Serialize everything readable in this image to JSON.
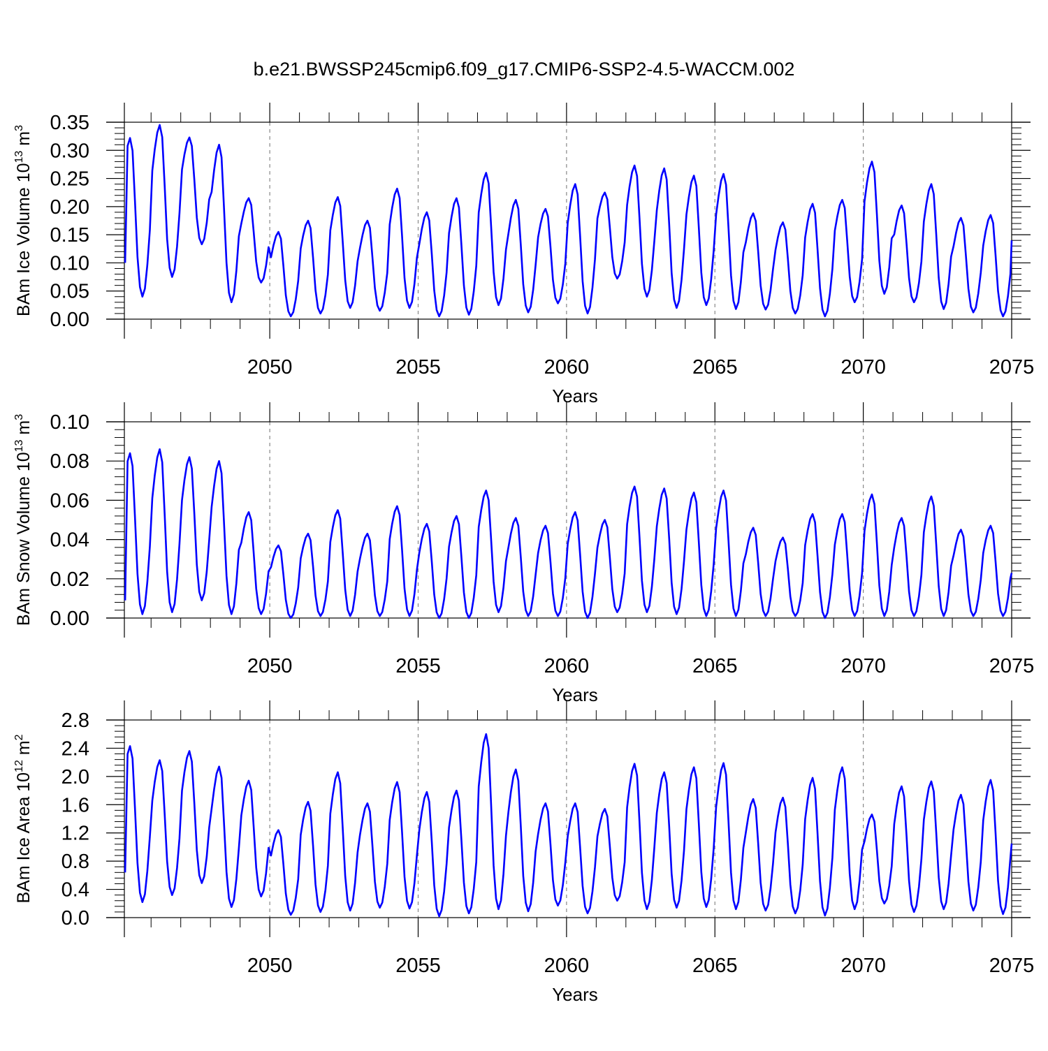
{
  "title": "b.e21.BWSSP245cmip6.f09_g17.CMIP6-SSP2-4.5-WACCM.002",
  "colors": {
    "line": "#0000ff",
    "axis": "#000000",
    "refline": "#888888"
  },
  "chart_data": [
    {
      "type": "line",
      "name": "ice-volume",
      "ylabel_main": "BAm Ice Volume 10",
      "ylabel_exp": "13",
      "ylabel_unit": " m",
      "ylabel_unit_exp": "3",
      "xlabel": "Years",
      "xlim": [
        2045.1,
        2075.0
      ],
      "ylim": [
        0.0,
        0.35
      ],
      "xticks": [
        2050,
        2055,
        2060,
        2065,
        2070,
        2075
      ],
      "xtick_labels": [
        "2050",
        "2055",
        "2060",
        "2065",
        "2070",
        "2075"
      ],
      "yticks": [
        0.0,
        0.05,
        0.1,
        0.15,
        0.2,
        0.25,
        0.3,
        0.35
      ],
      "ytick_labels": [
        "0.00",
        "0.05",
        "0.10",
        "0.15",
        "0.20",
        "0.25",
        "0.30",
        "0.35"
      ],
      "ref_lines_x": [
        2050,
        2055,
        2060,
        2065,
        2070
      ],
      "start_year": 2045.125,
      "step": 0.0833333,
      "annual": [
        [
          0.04,
          0.322
        ],
        [
          0.075,
          0.345
        ],
        [
          0.133,
          0.323
        ],
        [
          0.03,
          0.31
        ],
        [
          0.065,
          0.215
        ],
        [
          0.005,
          0.155
        ],
        [
          0.01,
          0.175
        ],
        [
          0.02,
          0.217
        ],
        [
          0.015,
          0.175
        ],
        [
          0.02,
          0.232
        ],
        [
          0.005,
          0.19
        ],
        [
          0.008,
          0.215
        ],
        [
          0.025,
          0.26
        ],
        [
          0.012,
          0.212
        ],
        [
          0.028,
          0.196
        ],
        [
          0.01,
          0.24
        ],
        [
          0.072,
          0.225
        ],
        [
          0.04,
          0.273
        ],
        [
          0.02,
          0.268
        ],
        [
          0.025,
          0.255
        ],
        [
          0.018,
          0.258
        ],
        [
          0.017,
          0.188
        ],
        [
          0.01,
          0.172
        ],
        [
          0.005,
          0.205
        ],
        [
          0.03,
          0.212
        ],
        [
          0.045,
          0.28
        ],
        [
          0.03,
          0.202
        ],
        [
          0.018,
          0.24
        ],
        [
          0.012,
          0.18
        ],
        [
          0.005,
          0.185
        ]
      ],
      "first_value": 0.1,
      "last_value": 0.14
    },
    {
      "type": "line",
      "name": "snow-volume",
      "ylabel_main": "BAm Snow Volume 10",
      "ylabel_exp": "13",
      "ylabel_unit": " m",
      "ylabel_unit_exp": "3",
      "xlabel": "Years",
      "xlim": [
        2045.1,
        2075.0
      ],
      "ylim": [
        0.0,
        0.1
      ],
      "xticks": [
        2050,
        2055,
        2060,
        2065,
        2070,
        2075
      ],
      "xtick_labels": [
        "2050",
        "2055",
        "2060",
        "2065",
        "2070",
        "2075"
      ],
      "yticks": [
        0.0,
        0.02,
        0.04,
        0.06,
        0.08,
        0.1
      ],
      "ytick_labels": [
        "0.00",
        "0.02",
        "0.04",
        "0.06",
        "0.08",
        "0.10"
      ],
      "ref_lines_x": [
        2050,
        2055,
        2060,
        2065,
        2070
      ],
      "start_year": 2045.125,
      "step": 0.0833333,
      "annual": [
        [
          0.002,
          0.084
        ],
        [
          0.003,
          0.086
        ],
        [
          0.009,
          0.082
        ],
        [
          0.002,
          0.08
        ],
        [
          0.002,
          0.054
        ],
        [
          0.0,
          0.037
        ],
        [
          0.001,
          0.043
        ],
        [
          0.001,
          0.055
        ],
        [
          0.001,
          0.043
        ],
        [
          0.001,
          0.057
        ],
        [
          0.0,
          0.048
        ],
        [
          0.0,
          0.052
        ],
        [
          0.003,
          0.065
        ],
        [
          0.001,
          0.051
        ],
        [
          0.001,
          0.047
        ],
        [
          0.0,
          0.054
        ],
        [
          0.003,
          0.05
        ],
        [
          0.003,
          0.067
        ],
        [
          0.002,
          0.066
        ],
        [
          0.001,
          0.064
        ],
        [
          0.001,
          0.065
        ],
        [
          0.001,
          0.046
        ],
        [
          0.001,
          0.041
        ],
        [
          0.0,
          0.053
        ],
        [
          0.001,
          0.053
        ],
        [
          0.001,
          0.063
        ],
        [
          0.001,
          0.051
        ],
        [
          0.001,
          0.062
        ],
        [
          0.001,
          0.045
        ],
        [
          0.001,
          0.047
        ]
      ],
      "first_value": 0.009,
      "last_value": 0.023
    },
    {
      "type": "line",
      "name": "ice-area",
      "ylabel_main": "BAm Ice Area 10",
      "ylabel_exp": "12",
      "ylabel_unit": " m",
      "ylabel_unit_exp": "2",
      "xlabel": "Years",
      "xlim": [
        2045.1,
        2075.0
      ],
      "ylim": [
        0.0,
        2.8
      ],
      "xticks": [
        2050,
        2055,
        2060,
        2065,
        2070,
        2075
      ],
      "xtick_labels": [
        "2050",
        "2055",
        "2060",
        "2065",
        "2070",
        "2075"
      ],
      "yticks": [
        0.0,
        0.4,
        0.8,
        1.2,
        1.6,
        2.0,
        2.4,
        2.8
      ],
      "ytick_labels": [
        "0.0",
        "0.4",
        "0.8",
        "1.2",
        "1.6",
        "2.0",
        "2.4",
        "2.8"
      ],
      "ref_lines_x": [
        2050,
        2055,
        2060,
        2065,
        2070
      ],
      "start_year": 2045.125,
      "step": 0.0833333,
      "annual": [
        [
          0.22,
          2.43
        ],
        [
          0.32,
          2.23
        ],
        [
          0.49,
          2.36
        ],
        [
          0.15,
          2.14
        ],
        [
          0.3,
          1.94
        ],
        [
          0.04,
          1.24
        ],
        [
          0.08,
          1.64
        ],
        [
          0.1,
          2.06
        ],
        [
          0.14,
          1.62
        ],
        [
          0.13,
          1.92
        ],
        [
          0.02,
          1.78
        ],
        [
          0.06,
          1.8
        ],
        [
          0.12,
          2.6
        ],
        [
          0.09,
          2.1
        ],
        [
          0.17,
          1.62
        ],
        [
          0.06,
          1.62
        ],
        [
          0.24,
          1.54
        ],
        [
          0.12,
          2.18
        ],
        [
          0.14,
          2.06
        ],
        [
          0.15,
          2.13
        ],
        [
          0.12,
          2.19
        ],
        [
          0.1,
          1.68
        ],
        [
          0.06,
          1.7
        ],
        [
          0.03,
          1.98
        ],
        [
          0.12,
          2.13
        ],
        [
          0.2,
          1.46
        ],
        [
          0.08,
          1.86
        ],
        [
          0.12,
          1.93
        ],
        [
          0.1,
          1.74
        ],
        [
          0.05,
          1.95
        ]
      ],
      "first_value": 0.64,
      "last_value": 1.05
    }
  ]
}
